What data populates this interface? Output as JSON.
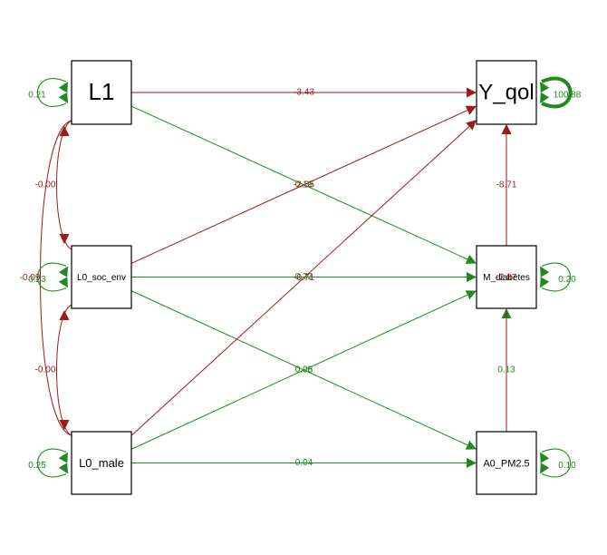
{
  "colors": {
    "positive": "#1f8b1f",
    "negative": "#9b1b1b",
    "node_border": "#000000"
  },
  "nodes": {
    "L1": "L1",
    "Y_qol": "Y_qol",
    "L0_soc_env": "L0_soc_env",
    "M_diabetes": "M_diabetes",
    "L0_male": "L0_male",
    "A0_PM2_5": "A0_PM2.5"
  },
  "paths": [
    {
      "from": "L1",
      "to": "Y_qol",
      "label": "-3.43",
      "sign": "negative"
    },
    {
      "from": "L1",
      "to": "M_diabetes",
      "label": "0.19",
      "sign": "positive"
    },
    {
      "from": "L0_soc_env",
      "to": "Y_qol",
      "label": "-2.85",
      "sign": "negative"
    },
    {
      "from": "L0_soc_env",
      "to": "M_diabetes",
      "label": "0.72",
      "sign": "positive"
    },
    {
      "from": "L0_soc_env",
      "to": "A0_PM2_5",
      "label": "0.08",
      "sign": "positive"
    },
    {
      "from": "L0_male",
      "to": "Y_qol",
      "label": "-0.71",
      "sign": "negative"
    },
    {
      "from": "L0_male",
      "to": "M_diabetes",
      "label": "0.06",
      "sign": "positive"
    },
    {
      "from": "L0_male",
      "to": "A0_PM2_5",
      "label": "0.04",
      "sign": "positive"
    },
    {
      "from": "M_diabetes",
      "to": "Y_qol",
      "label": "-8.71",
      "sign": "negative"
    },
    {
      "from": "A0_PM2_5",
      "to": "M_diabetes",
      "label": "0.13",
      "sign": "positive"
    },
    {
      "from": "A0_PM2_5",
      "to": "Y_qol",
      "label": "-2.87",
      "sign": "negative"
    }
  ],
  "covariances": [
    {
      "a": "L1",
      "b": "L0_soc_env",
      "label": "-0.00",
      "sign": "negative"
    },
    {
      "a": "L0_soc_env",
      "b": "L0_male",
      "label": "-0.00",
      "sign": "negative"
    },
    {
      "a": "L1",
      "b": "L0_male",
      "label": "-0.09",
      "sign": "negative"
    }
  ],
  "variances": [
    {
      "node": "L1",
      "label": "0.21"
    },
    {
      "node": "L0_soc_env",
      "label": "0.23"
    },
    {
      "node": "L0_male",
      "label": "0.25"
    },
    {
      "node": "Y_qol",
      "label": "100.88"
    },
    {
      "node": "M_diabetes",
      "label": "0.20"
    },
    {
      "node": "A0_PM2_5",
      "label": "0.10"
    }
  ]
}
